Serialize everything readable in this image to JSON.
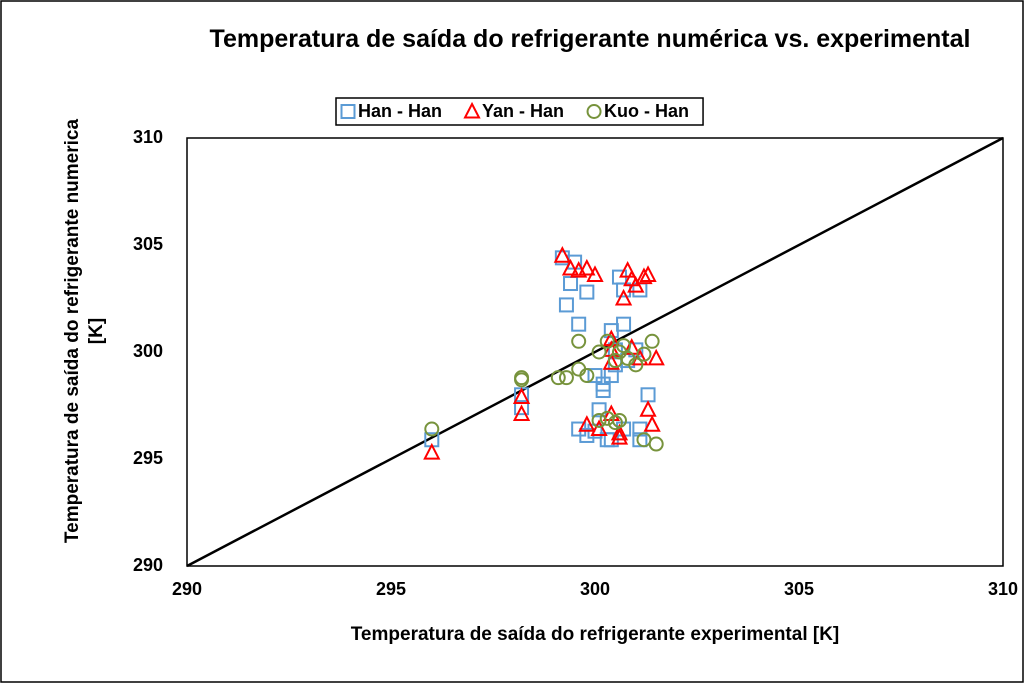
{
  "chart_data": {
    "type": "scatter",
    "title": "Temperatura de saída do refrigerante numérica vs. experimental",
    "x_label": "Temperatura de saída do refrigerante experimental [K]",
    "y_label": "Temperatura de saída do refrigerante numerica [K]",
    "xlim": [
      290,
      310
    ],
    "ylim": [
      290,
      310
    ],
    "xticks": [
      290,
      295,
      300,
      305,
      310
    ],
    "yticks": [
      290,
      295,
      300,
      305,
      310
    ],
    "grid": false,
    "legend": "top",
    "reference_line": {
      "x": [
        290,
        310
      ],
      "y": [
        290,
        310
      ],
      "color": "#000000"
    },
    "series": [
      {
        "name": "Han - Han",
        "color": "#5b9bd5",
        "marker": "square",
        "x": [
          296.0,
          298.2,
          298.2,
          299.2,
          299.5,
          299.4,
          299.3,
          299.6,
          299.8,
          299.6,
          299.8,
          300.0,
          300.1,
          300.2,
          300.2,
          300.0,
          300.3,
          300.4,
          300.4,
          300.5,
          300.5,
          300.4,
          300.7,
          300.7,
          300.6,
          300.7,
          300.8,
          301.0,
          301.1,
          301.1,
          301.1,
          301.3
        ],
        "values": [
          295.9,
          298.0,
          297.4,
          304.4,
          304.2,
          303.2,
          302.2,
          301.3,
          302.8,
          296.4,
          296.1,
          296.3,
          297.3,
          298.2,
          298.5,
          298.9,
          295.9,
          295.9,
          301.0,
          300.1,
          299.4,
          298.9,
          296.4,
          302.9,
          303.5,
          301.3,
          299.6,
          300.1,
          302.9,
          296.4,
          295.9,
          298.0
        ]
      },
      {
        "name": "Yan - Han",
        "color": "#ff0000",
        "marker": "triangle",
        "x": [
          296.0,
          298.2,
          298.2,
          299.2,
          299.4,
          299.6,
          299.8,
          300.0,
          300.4,
          300.4,
          300.4,
          300.1,
          299.8,
          300.4,
          300.6,
          300.6,
          300.7,
          300.8,
          300.9,
          301.0,
          301.2,
          301.3,
          301.5,
          301.4,
          301.3,
          301.1,
          300.9
        ],
        "values": [
          295.3,
          297.9,
          297.1,
          304.5,
          303.9,
          303.8,
          303.9,
          303.6,
          300.6,
          300.1,
          299.5,
          296.4,
          296.6,
          297.1,
          296.2,
          296.0,
          302.5,
          303.8,
          303.4,
          303.1,
          303.5,
          303.6,
          299.7,
          296.6,
          297.3,
          299.7,
          300.2
        ]
      },
      {
        "name": "Kuo - Han",
        "color": "#77933c",
        "marker": "circle",
        "x": [
          296.0,
          298.2,
          298.2,
          299.1,
          299.3,
          299.6,
          299.6,
          299.8,
          300.1,
          300.3,
          300.1,
          300.3,
          300.5,
          300.6,
          300.6,
          300.7,
          300.8,
          301.0,
          301.2,
          301.4,
          301.2,
          301.5,
          300.5
        ],
        "values": [
          296.4,
          298.7,
          298.8,
          298.8,
          298.8,
          299.2,
          300.5,
          298.9,
          300.0,
          300.5,
          296.8,
          296.9,
          296.7,
          296.8,
          300.0,
          300.3,
          299.7,
          299.4,
          299.9,
          300.5,
          295.9,
          295.7,
          299.6
        ]
      }
    ]
  }
}
